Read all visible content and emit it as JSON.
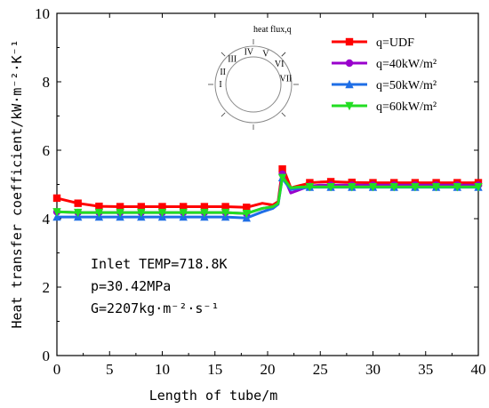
{
  "chart_data": {
    "type": "line",
    "xlabel": "Length of tube/m",
    "ylabel": "Heat transfer coefficient/kW·m⁻²·K⁻¹",
    "xlim": [
      0,
      40
    ],
    "ylim": [
      0,
      10
    ],
    "xticks": [
      "0",
      "5",
      "10",
      "15",
      "20",
      "25",
      "30",
      "35",
      "40"
    ],
    "yticks": [
      "0",
      "2",
      "4",
      "6",
      "8",
      "10"
    ],
    "x": [
      0,
      2,
      4,
      6,
      8,
      10,
      12,
      14,
      16,
      18,
      19.5,
      20.5,
      21,
      21.4,
      21.7,
      22.2,
      22.8,
      23.5,
      24,
      25,
      26,
      28,
      30,
      32,
      34,
      36,
      38,
      40
    ],
    "series": [
      {
        "name": "q=UDF",
        "color": "#ff0000",
        "marker": "square",
        "values": [
          4.6,
          4.45,
          4.36,
          4.35,
          4.35,
          4.35,
          4.35,
          4.35,
          4.35,
          4.33,
          4.45,
          4.4,
          4.5,
          5.45,
          5.3,
          4.9,
          4.95,
          5.0,
          5.05,
          5.07,
          5.08,
          5.06,
          5.05,
          5.05,
          5.05,
          5.05,
          5.05,
          5.05
        ]
      },
      {
        "name": "q=40kW/m²",
        "color": "#9900cc",
        "marker": "circle",
        "values": [
          4.2,
          4.18,
          4.18,
          4.18,
          4.18,
          4.18,
          4.18,
          4.18,
          4.18,
          4.15,
          4.3,
          4.35,
          4.45,
          5.3,
          5.1,
          4.75,
          4.82,
          4.9,
          4.95,
          4.98,
          4.98,
          4.98,
          4.98,
          4.98,
          4.98,
          4.98,
          4.98,
          4.98
        ]
      },
      {
        "name": "q=50kW/m²",
        "color": "#1e6ee6",
        "marker": "triangle-up",
        "values": [
          4.05,
          4.05,
          4.05,
          4.05,
          4.05,
          4.05,
          4.05,
          4.05,
          4.05,
          4.02,
          4.2,
          4.3,
          4.42,
          5.2,
          5.05,
          4.85,
          4.88,
          4.9,
          4.92,
          4.92,
          4.92,
          4.92,
          4.92,
          4.92,
          4.92,
          4.92,
          4.92,
          4.92
        ]
      },
      {
        "name": "q=60kW/m²",
        "color": "#22dd22",
        "marker": "triangle-down",
        "values": [
          4.2,
          4.18,
          4.18,
          4.18,
          4.18,
          4.18,
          4.18,
          4.18,
          4.18,
          4.15,
          4.3,
          4.35,
          4.45,
          5.2,
          5.1,
          4.9,
          4.92,
          4.93,
          4.93,
          4.93,
          4.93,
          4.93,
          4.93,
          4.93,
          4.93,
          4.93,
          4.93,
          4.93
        ]
      }
    ],
    "legend_position": "top-right",
    "annotations": [
      "Inlet TEMP=718.8K",
      "p=30.42MPa",
      "G=2207kg·m⁻²·s⁻¹"
    ],
    "inset": {
      "title": "heat flux,q",
      "labels": [
        "I",
        "II",
        "III",
        "IV",
        "V",
        "VI",
        "VII"
      ]
    }
  }
}
